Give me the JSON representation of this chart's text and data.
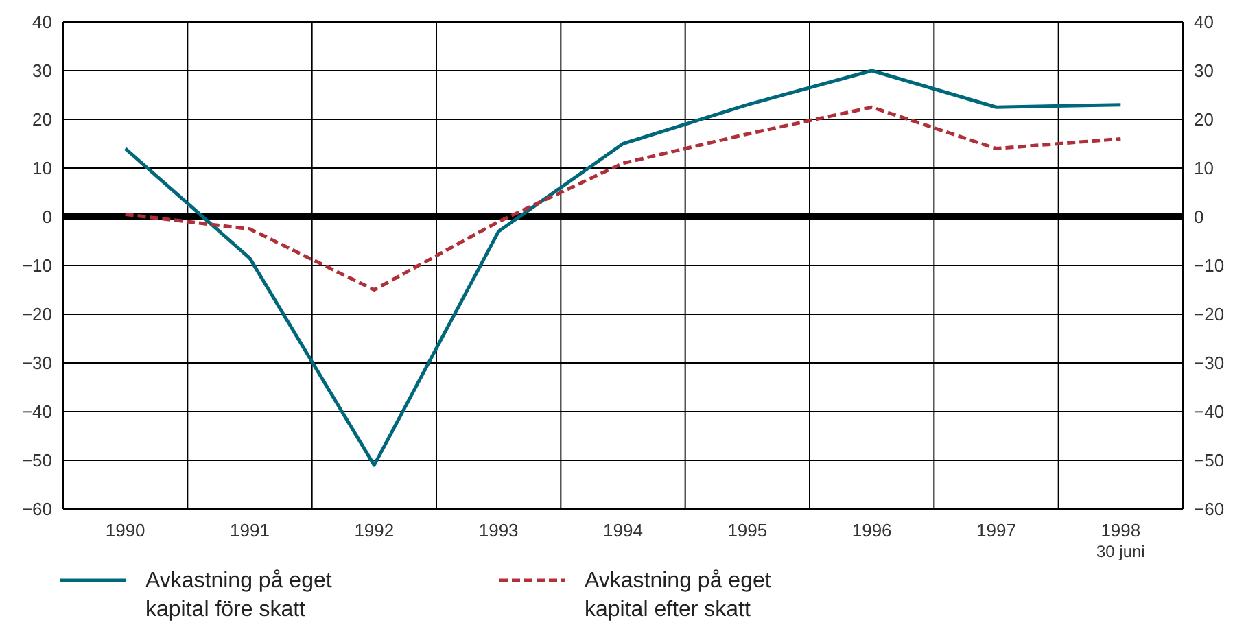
{
  "chart_data": {
    "type": "line",
    "categories": [
      "1990",
      "1991",
      "1992",
      "1993",
      "1994",
      "1995",
      "1996",
      "1997",
      "1998\n30 juni"
    ],
    "series": [
      {
        "name": "Avkastning på eget kapital före skatt",
        "color": "#00687a",
        "line_style": "solid",
        "values": [
          14,
          -8.5,
          -51,
          -3,
          15,
          23,
          30,
          22.5,
          23
        ]
      },
      {
        "name": "Avkastning på eget kapital efter skatt",
        "color": "#b0303a",
        "line_style": "dashed",
        "values": [
          0.5,
          -2.5,
          -15,
          -1,
          11,
          17,
          22.5,
          14,
          16
        ]
      }
    ],
    "ylim": [
      -60,
      40
    ],
    "yticks": [
      -60,
      -50,
      -40,
      -30,
      -20,
      -10,
      0,
      10,
      20,
      30,
      40
    ],
    "y2lim": [
      -60,
      40
    ],
    "y2ticks": [
      -60,
      -50,
      -40,
      -30,
      -20,
      -10,
      0,
      10,
      20,
      30,
      40
    ],
    "ref_lines": [
      {
        "axis": "y",
        "value": 0,
        "color": "#000000"
      }
    ],
    "grid": true,
    "legend": "bottom left",
    "marker": "none"
  }
}
